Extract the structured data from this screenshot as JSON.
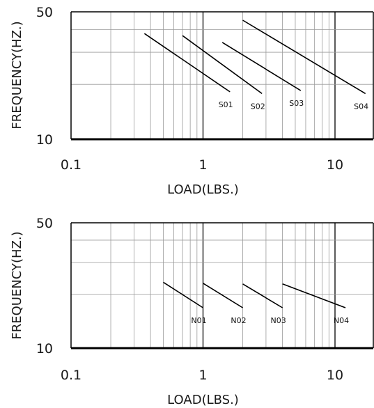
{
  "chart_data": [
    {
      "type": "line",
      "xlabel": "LOAD(LBS.)",
      "ylabel": "FREQUENCY(HZ.)",
      "xscale": "log",
      "yscale": "log",
      "xlim": [
        0.1,
        20
      ],
      "ylim": [
        10,
        50
      ],
      "xticks": [
        "0.1",
        "1",
        "10"
      ],
      "yticks": [
        "10",
        "50"
      ],
      "grid": true,
      "series": [
        {
          "name": "S01",
          "x": [
            0.36,
            1.6
          ],
          "y": [
            38,
            18.2
          ]
        },
        {
          "name": "S02",
          "x": [
            0.7,
            2.8
          ],
          "y": [
            37,
            17.8
          ]
        },
        {
          "name": "S03",
          "x": [
            1.4,
            5.5
          ],
          "y": [
            34,
            18.5
          ]
        },
        {
          "name": "S04",
          "x": [
            2.0,
            17.0
          ],
          "y": [
            45,
            17.8
          ]
        }
      ]
    },
    {
      "type": "line",
      "xlabel": "LOAD(LBS.)",
      "ylabel": "FREQUENCY(HZ.)",
      "xscale": "log",
      "yscale": "log",
      "xlim": [
        0.1,
        20
      ],
      "ylim": [
        10,
        50
      ],
      "xticks": [
        "0.1",
        "1",
        "10"
      ],
      "yticks": [
        "10",
        "50"
      ],
      "grid": true,
      "series": [
        {
          "name": "N01",
          "x": [
            0.5,
            1.0
          ],
          "y": [
            23.3,
            16.8
          ]
        },
        {
          "name": "N02",
          "x": [
            1.0,
            2.0
          ],
          "y": [
            23.0,
            16.8
          ]
        },
        {
          "name": "N03",
          "x": [
            2.0,
            4.0
          ],
          "y": [
            22.8,
            16.8
          ]
        },
        {
          "name": "N04",
          "x": [
            4.0,
            12.0
          ],
          "y": [
            22.8,
            16.8
          ]
        }
      ]
    }
  ]
}
